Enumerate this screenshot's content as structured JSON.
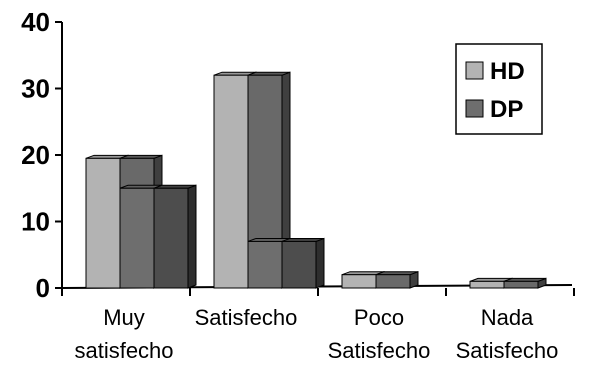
{
  "chart_data": {
    "type": "bar",
    "categories": [
      [
        "Muy",
        "satisfecho"
      ],
      [
        "Satisfecho"
      ],
      [
        "Poco",
        "Satisfecho"
      ],
      [
        "Nada",
        "Satisfecho"
      ]
    ],
    "series": [
      {
        "name": "HD",
        "values": [
          19.5,
          32,
          2,
          1
        ],
        "color": "#b3b3b3"
      },
      {
        "name": "DP",
        "values": [
          15,
          7,
          0,
          0
        ],
        "color": "#6e6e6e"
      }
    ],
    "yticks": [
      0,
      10,
      20,
      30,
      40
    ],
    "ylim": [
      0,
      40
    ],
    "legend_position": "top-right",
    "grid": false,
    "style": "3d-bar"
  }
}
